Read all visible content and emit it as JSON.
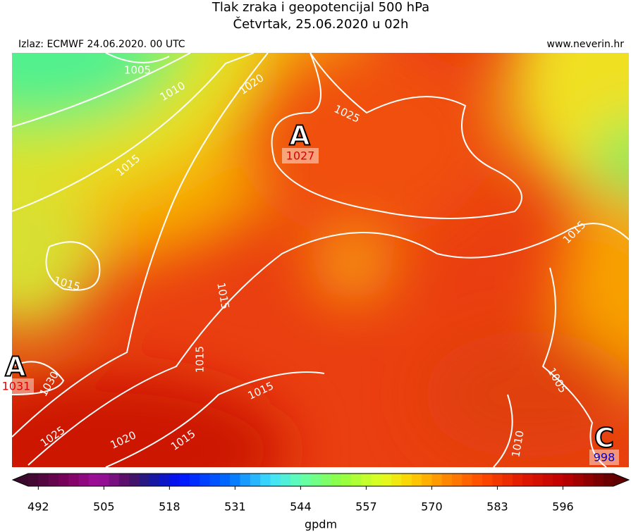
{
  "header": {
    "title": "Tlak zraka i geopotencijal 500 hPa",
    "subtitle": "Četvrtak, 25.06.2020 u 02h",
    "source": "Izlaz: ECMWF 24.06.2020. 00 UTC",
    "website": "www.neverin.hr"
  },
  "pressure_centers": [
    {
      "letter": "A",
      "value": 1027
    },
    {
      "letter": "A",
      "value": 1031
    },
    {
      "letter": "C",
      "value": 998
    }
  ],
  "isobar_labels": [
    1005,
    1010,
    1020,
    1025,
    1015,
    1015,
    1015,
    1015,
    1015,
    1030,
    1025,
    1020,
    1015,
    1015,
    1005,
    1010
  ],
  "colorbar": {
    "unit": "gpdm",
    "range": [
      490,
      606
    ],
    "step": 2,
    "ticks": [
      492,
      505,
      518,
      531,
      544,
      557,
      570,
      583,
      596
    ],
    "color_stops": [
      [
        490,
        "#3a0a2c"
      ],
      [
        498,
        "#800060"
      ],
      [
        504,
        "#a010a0"
      ],
      [
        510,
        "#501060"
      ],
      [
        514,
        "#1a1a90"
      ],
      [
        520,
        "#0010ff"
      ],
      [
        530,
        "#0070ff"
      ],
      [
        538,
        "#40e0ff"
      ],
      [
        544,
        "#60ffb0"
      ],
      [
        552,
        "#90ff40"
      ],
      [
        560,
        "#e0ff20"
      ],
      [
        566,
        "#ffd000"
      ],
      [
        572,
        "#ff9000"
      ],
      [
        580,
        "#ff4a00"
      ],
      [
        588,
        "#e01800"
      ],
      [
        596,
        "#c00000"
      ],
      [
        606,
        "#600000"
      ]
    ]
  }
}
